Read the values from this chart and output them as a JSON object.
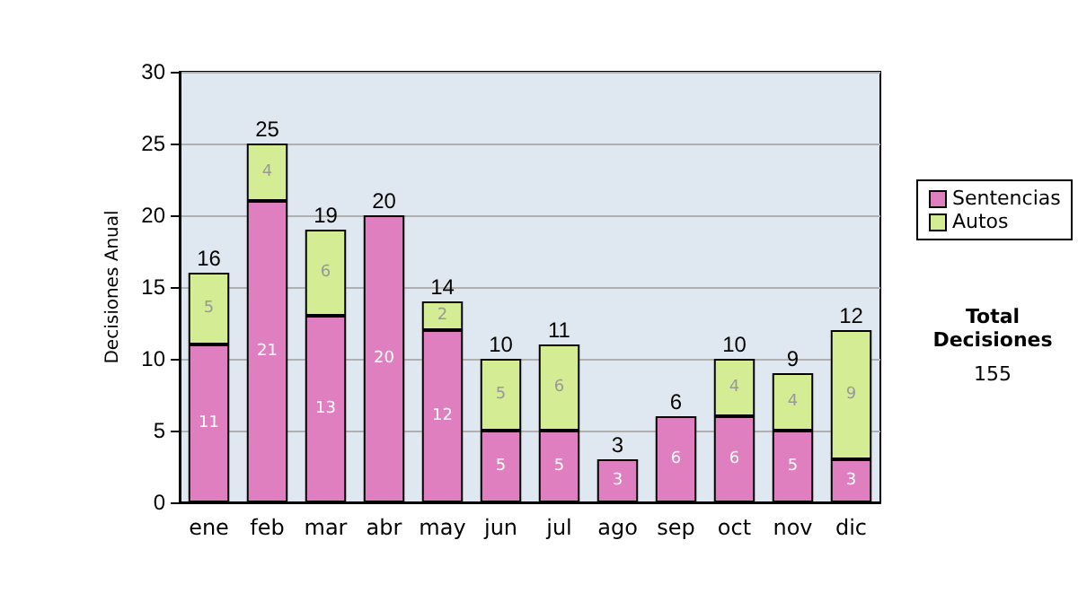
{
  "chart_data": {
    "type": "bar",
    "ylabel": "Decisiones Anual",
    "categories": [
      "ene",
      "feb",
      "mar",
      "abr",
      "may",
      "jun",
      "jul",
      "ago",
      "sep",
      "oct",
      "nov",
      "dic"
    ],
    "series": [
      {
        "name": "Sentencias",
        "color": "#df7fbf",
        "values": [
          11,
          21,
          13,
          20,
          12,
          5,
          5,
          3,
          6,
          6,
          5,
          3
        ]
      },
      {
        "name": "Autos",
        "color": "#d4ec94",
        "values": [
          5,
          4,
          6,
          null,
          2,
          5,
          6,
          null,
          null,
          4,
          4,
          9
        ]
      }
    ],
    "stacked": true,
    "data_labels": true,
    "totals": [
      "16",
      "25",
      "19",
      "20",
      "14",
      "10",
      "11",
      "3",
      "6",
      "10",
      "9",
      "12"
    ],
    "ylim": [
      0,
      30
    ],
    "yticks": [
      0,
      5,
      10,
      15,
      20,
      25,
      30
    ],
    "grid": "y",
    "legend": "right",
    "annotations": [
      "Total Decisiones",
      "155"
    ]
  }
}
